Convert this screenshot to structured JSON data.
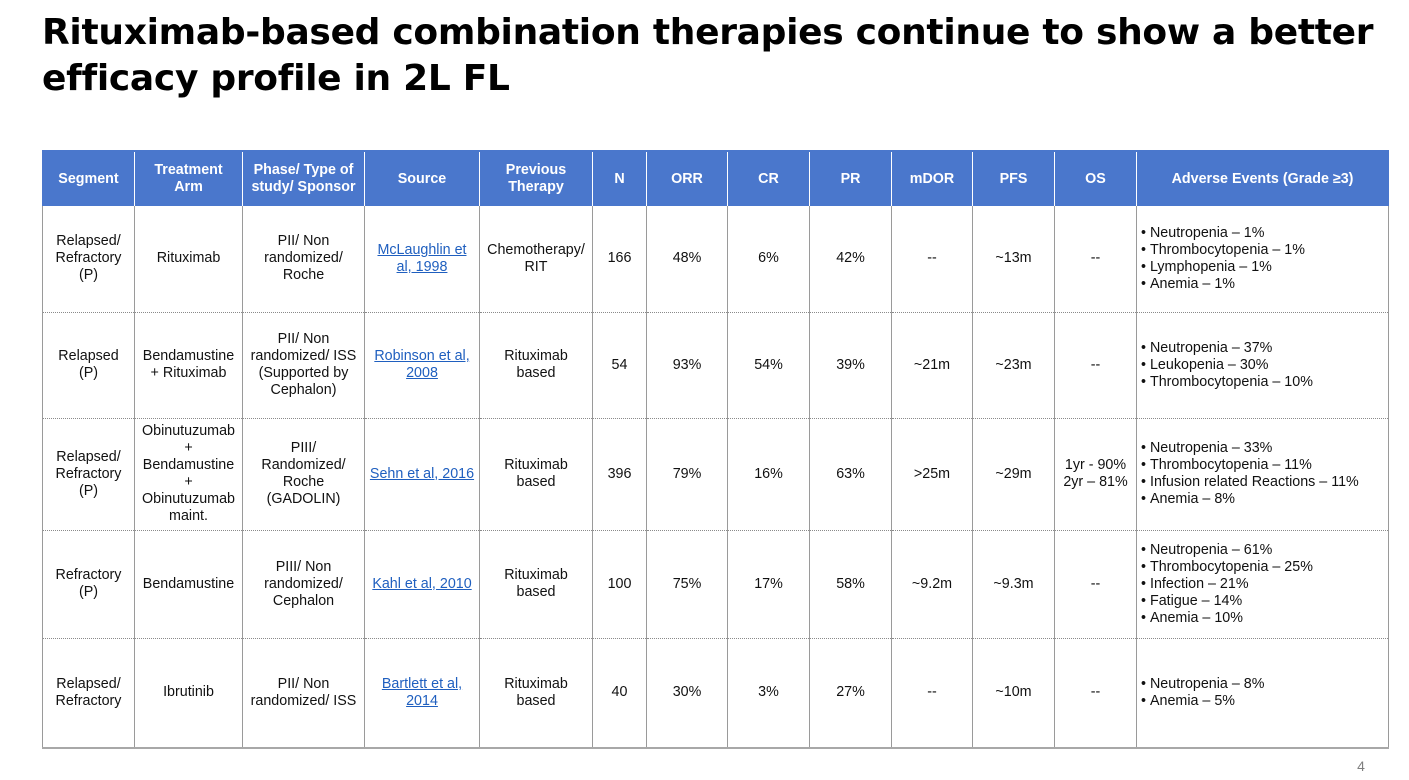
{
  "slide": {
    "title_lines": [
      "Rituximab-based combination therapies continue to show a better",
      "efficacy profile in 2L FL"
    ],
    "page_number": "4"
  },
  "table": {
    "header_color": "#4a77cc",
    "link_color": "#1f5fbf",
    "columns": [
      [
        "Segment"
      ],
      [
        "Treatment",
        "Arm"
      ],
      [
        "Phase/ Type of",
        "study/ Sponsor"
      ],
      [
        "Source"
      ],
      [
        "Previous",
        "Therapy"
      ],
      [
        "N"
      ],
      [
        "ORR"
      ],
      [
        "CR"
      ],
      [
        "PR"
      ],
      [
        "mDOR"
      ],
      [
        "PFS"
      ],
      [
        "OS"
      ],
      [
        "Adverse Events (Grade ≥3)"
      ]
    ],
    "rows": [
      {
        "segment": [
          "Relapsed/",
          "Refractory",
          "(P)"
        ],
        "arm": [
          "Rituximab"
        ],
        "phase": [
          "PII/ Non",
          "randomized/",
          "Roche"
        ],
        "source": [
          "McLaughlin et",
          "al, 1998"
        ],
        "previous": [
          "Chemotherapy/",
          "RIT"
        ],
        "n": "166",
        "orr": "48%",
        "cr": "6%",
        "pr": "42%",
        "mdor": "--",
        "pfs": "~13m",
        "os": [
          "--"
        ],
        "adverse": [
          "Neutropenia – 1%",
          "Thrombocytopenia – 1%",
          "Lymphopenia – 1%",
          "Anemia – 1%"
        ]
      },
      {
        "segment": [
          "Relapsed",
          "(P)"
        ],
        "arm": [
          "Bendamustine",
          "+ Rituximab"
        ],
        "phase": [
          "PII/ Non",
          "randomized/ ISS",
          "(Supported by",
          "Cephalon)"
        ],
        "source": [
          "Robinson et al,",
          "2008"
        ],
        "previous": [
          "Rituximab",
          "based"
        ],
        "n": "54",
        "orr": "93%",
        "cr": "54%",
        "pr": "39%",
        "mdor": "~21m",
        "pfs": "~23m",
        "os": [
          "--"
        ],
        "adverse": [
          "Neutropenia – 37%",
          "Leukopenia – 30%",
          "Thrombocytopenia – 10%"
        ]
      },
      {
        "segment": [
          "Relapsed/",
          "Refractory",
          "(P)"
        ],
        "arm": [
          "Obinutuzumab",
          "+",
          "Bendamustine",
          "+",
          "Obinutuzumab",
          "maint."
        ],
        "phase": [
          "PIII/",
          "Randomized/",
          "Roche",
          "(GADOLIN)"
        ],
        "source": [
          "Sehn et al, 2016"
        ],
        "previous": [
          "Rituximab",
          "based"
        ],
        "n": "396",
        "orr": "79%",
        "cr": "16%",
        "pr": "63%",
        "mdor": ">25m",
        "pfs": "~29m",
        "os": [
          "1yr - 90%",
          "2yr – 81%"
        ],
        "adverse": [
          "Neutropenia – 33%",
          "Thrombocytopenia – 11%",
          "Infusion related Reactions – 11%",
          "Anemia – 8%"
        ]
      },
      {
        "segment": [
          "Refractory",
          "(P)"
        ],
        "arm": [
          "Bendamustine"
        ],
        "phase": [
          "PIII/ Non",
          "randomized/",
          "Cephalon"
        ],
        "source": [
          "Kahl et al, 2010"
        ],
        "previous": [
          "Rituximab",
          "based"
        ],
        "n": "100",
        "orr": "75%",
        "cr": "17%",
        "pr": "58%",
        "mdor": "~9.2m",
        "pfs": "~9.3m",
        "os": [
          "--"
        ],
        "adverse": [
          "Neutropenia – 61%",
          "Thrombocytopenia – 25%",
          "Infection – 21%",
          "Fatigue – 14%",
          "Anemia – 10%"
        ]
      },
      {
        "segment": [
          "Relapsed/",
          "Refractory"
        ],
        "arm": [
          "Ibrutinib"
        ],
        "phase": [
          "PII/ Non",
          "randomized/ ISS"
        ],
        "source": [
          "Bartlett et al,",
          "2014"
        ],
        "previous": [
          "Rituximab",
          "based"
        ],
        "n": "40",
        "orr": "30%",
        "cr": "3%",
        "pr": "27%",
        "mdor": "--",
        "pfs": "~10m",
        "os": [
          "--"
        ],
        "adverse": [
          "Neutropenia – 8%",
          "Anemia – 5%"
        ]
      }
    ]
  }
}
